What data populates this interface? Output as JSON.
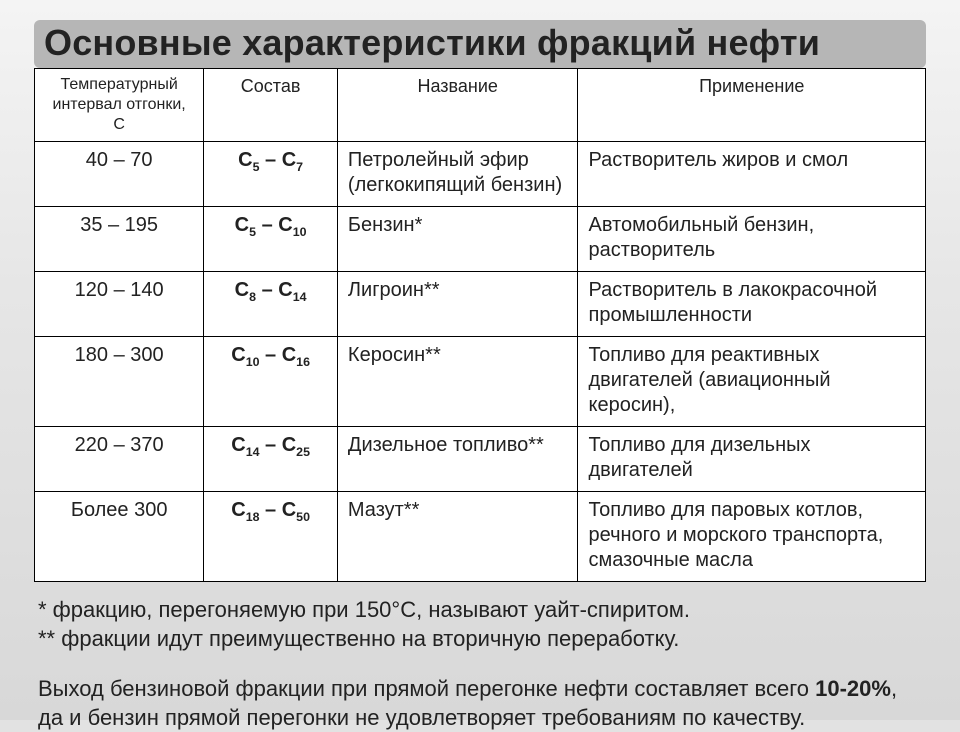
{
  "colors": {
    "page_bg_top": "#f4f4f4",
    "page_bg_bottom": "#d8d8d8",
    "title_band_bg": "#b6b6b6",
    "table_bg": "#ffffff",
    "border": "#000000",
    "text": "#222222"
  },
  "title": "Основные характеристики фракций нефти",
  "table": {
    "columns": [
      {
        "key": "temp",
        "label": "Температурный интервал отгонки, С",
        "width_pct": 19,
        "align": "center",
        "header_fontsize": 16
      },
      {
        "key": "comp",
        "label": "Состав",
        "width_pct": 15,
        "align": "center",
        "header_fontsize": 18
      },
      {
        "key": "name",
        "label": "Название",
        "width_pct": 27,
        "align": "left",
        "header_fontsize": 18
      },
      {
        "key": "app",
        "label": "Применение",
        "width_pct": 39,
        "align": "left",
        "header_fontsize": 18
      }
    ],
    "rows": [
      {
        "temp": "40 – 70",
        "comp_lo": "5",
        "comp_hi": "7",
        "name": "Петролейный эфир (легкокипящий бензин)",
        "app": "Растворитель жиров и смол"
      },
      {
        "temp": "35 – 195",
        "comp_lo": "5",
        "comp_hi": "10",
        "name": "Бензин*",
        "app": "Автомобильный бензин, растворитель"
      },
      {
        "temp": "120 – 140",
        "comp_lo": "8",
        "comp_hi": "14",
        "name": "Лигроин**",
        "app": "Растворитель в лакокрасочной промышленности"
      },
      {
        "temp": "180 – 300",
        "comp_lo": "10",
        "comp_hi": "16",
        "name": "Керосин**",
        "app": "Топливо для реактивных двигателей (авиационный керосин),"
      },
      {
        "temp": "220 – 370",
        "comp_lo": "14",
        "comp_hi": "25",
        "name": "Дизельное топливо**",
        "app": "Топливо для дизельных двигателей"
      },
      {
        "temp": "Более 300",
        "comp_lo": "18",
        "comp_hi": "50",
        "name": "Мазут**",
        "app": "Топливо для паровых котлов, речного и морского транспорта, смазочные масла"
      }
    ]
  },
  "notes": {
    "line1": "* фракцию, перегоняемую при 150°С, называют уайт-спиритом.",
    "line2": "** фракции идут преимущественно на вторичную переработку.",
    "p2_prefix": "Выход бензиновой фракции при прямой перегонке нефти составляет всего ",
    "p2_bold": "10-20%",
    "p2_suffix": ", да и бензин прямой перегонки не удовлетворяет требованиям по качеству."
  },
  "fonts": {
    "title_size": 36,
    "header_size": 18,
    "cell_size": 20,
    "notes_size": 22
  }
}
